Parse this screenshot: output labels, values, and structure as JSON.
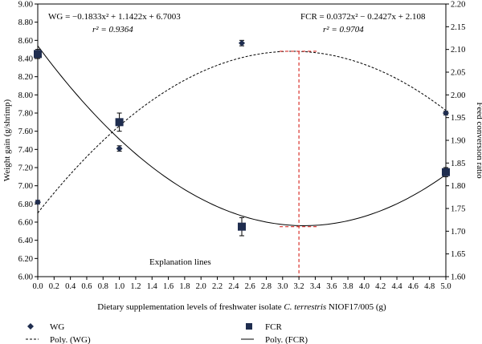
{
  "chart_data": {
    "type": "scatter",
    "x_axis": {
      "label_prefix": "Dietary supplementation levels of  freshwater isolate ",
      "label_italic": "C. terrestris",
      "label_suffix": " NIOF17/005 (g)",
      "range": [
        0,
        5
      ],
      "ticks": [
        "0.0",
        "0.2",
        "0.4",
        "0.6",
        "0.8",
        "1.0",
        "1.2",
        "1.4",
        "1.6",
        "1.8",
        "2.0",
        "2.2",
        "2.4",
        "2.6",
        "2.8",
        "3.0",
        "3.2",
        "3.4",
        "3.6",
        "3.8",
        "4.0",
        "4.2",
        "4.4",
        "4.6",
        "4.8",
        "5.0"
      ]
    },
    "y_left": {
      "label": "Weight gain (g/shrimp)",
      "range": [
        6.0,
        9.0
      ],
      "ticks": [
        "6.00",
        "6.20",
        "6.40",
        "6.60",
        "6.80",
        "7.00",
        "7.20",
        "7.40",
        "7.60",
        "7.80",
        "8.00",
        "8.20",
        "8.40",
        "8.60",
        "8.80",
        "9.00"
      ]
    },
    "y_right": {
      "label": "Feed conversion ratio",
      "range": [
        1.6,
        2.2
      ],
      "ticks": [
        "1.60",
        "1.65",
        "1.70",
        "1.75",
        "1.80",
        "1.85",
        "1.90",
        "1.95",
        "2.00",
        "2.05",
        "2.10",
        "2.15",
        "2.20"
      ]
    },
    "series": [
      {
        "name": "WG",
        "axis": "left",
        "marker": "diamond",
        "points": [
          {
            "x": 0.0,
            "y": 6.82,
            "err": 0.02
          },
          {
            "x": 1.0,
            "y": 7.41,
            "err": 0.03
          },
          {
            "x": 2.5,
            "y": 8.57,
            "err": 0.03
          },
          {
            "x": 5.0,
            "y": 7.8,
            "err": 0.02
          }
        ]
      },
      {
        "name": "FCR",
        "axis": "right",
        "marker": "square",
        "points": [
          {
            "x": 0.0,
            "y": 2.09,
            "err": 0.01
          },
          {
            "x": 1.0,
            "y": 1.94,
            "err": 0.02
          },
          {
            "x": 2.5,
            "y": 1.71,
            "err": 0.02
          },
          {
            "x": 5.0,
            "y": 1.83,
            "err": 0.01
          }
        ]
      }
    ],
    "fits": [
      {
        "name": "Poly. (WG)",
        "axis": "left",
        "style": "dashed",
        "coeffs": [
          -0.1833,
          1.1422,
          6.7003
        ]
      },
      {
        "name": "Poly. (FCR)",
        "axis": "right",
        "style": "solid",
        "coeffs": [
          0.0372,
          -0.2427,
          2.108
        ]
      }
    ],
    "equations": {
      "wg_eq": "WG = −0.1833x² + 1.1422x + 6.7003",
      "wg_r2": "r² = 0.9364",
      "fcr_eq": "FCR = 0.0372x² − 0.2427x + 2.108",
      "fcr_r2": "r² = 0.9704"
    },
    "explanation_lines": {
      "label": "Explanation lines",
      "x": 3.2,
      "wg_max": 8.48,
      "fcr_min": 1.71,
      "color": "#d9312b"
    },
    "legend": {
      "placement": "bottom",
      "items": [
        {
          "symbol": "diamond",
          "label": "WG"
        },
        {
          "symbol": "square",
          "label": "FCR"
        },
        {
          "symbol": "dashed-line",
          "label": "Poly. (WG)"
        },
        {
          "symbol": "solid-line",
          "label": "Poly. (FCR)"
        }
      ]
    },
    "colors": {
      "markers": "#1f2d4f",
      "lines": "#000000",
      "explanation": "#d9312b"
    }
  }
}
